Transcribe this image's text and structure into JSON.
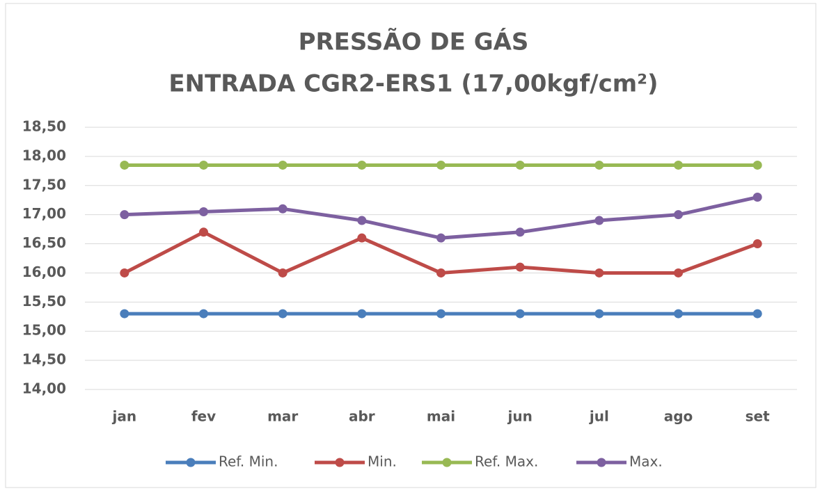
{
  "chart_data": {
    "type": "line",
    "title": [
      "PRESSÃO DE GÁS",
      "ENTRADA CGR2-ERS1 (17,00kgf/cm²)"
    ],
    "categories": [
      "jan",
      "fev",
      "mar",
      "abr",
      "mai",
      "jun",
      "jul",
      "ago",
      "set"
    ],
    "series": [
      {
        "name": "Ref. Min.",
        "color": "#4a7ebb",
        "values": [
          15.3,
          15.3,
          15.3,
          15.3,
          15.3,
          15.3,
          15.3,
          15.3,
          15.3
        ]
      },
      {
        "name": "Min.",
        "color": "#be4b48",
        "values": [
          16.0,
          16.7,
          16.0,
          16.6,
          16.0,
          16.1,
          16.0,
          16.0,
          16.5
        ]
      },
      {
        "name": "Ref. Max.",
        "color": "#98b954",
        "values": [
          17.85,
          17.85,
          17.85,
          17.85,
          17.85,
          17.85,
          17.85,
          17.85,
          17.85
        ]
      },
      {
        "name": "Max.",
        "color": "#7d60a0",
        "values": [
          17.0,
          17.05,
          17.1,
          16.9,
          16.6,
          16.7,
          16.9,
          17.0,
          17.3
        ]
      }
    ],
    "ylim": [
      14,
      18.5
    ],
    "yticks": [
      {
        "value": 14,
        "label": "14,00"
      },
      {
        "value": 14.5,
        "label": "14,50"
      },
      {
        "value": 15,
        "label": "15,00"
      },
      {
        "value": 15.5,
        "label": "15,50"
      },
      {
        "value": 16,
        "label": "16,00"
      },
      {
        "value": 16.5,
        "label": "16,50"
      },
      {
        "value": 17,
        "label": "17,00"
      },
      {
        "value": 17.5,
        "label": "17,50"
      },
      {
        "value": 18,
        "label": "18,00"
      },
      {
        "value": 18.5,
        "label": "18,50"
      }
    ],
    "grid": true,
    "legend": "bottom"
  }
}
